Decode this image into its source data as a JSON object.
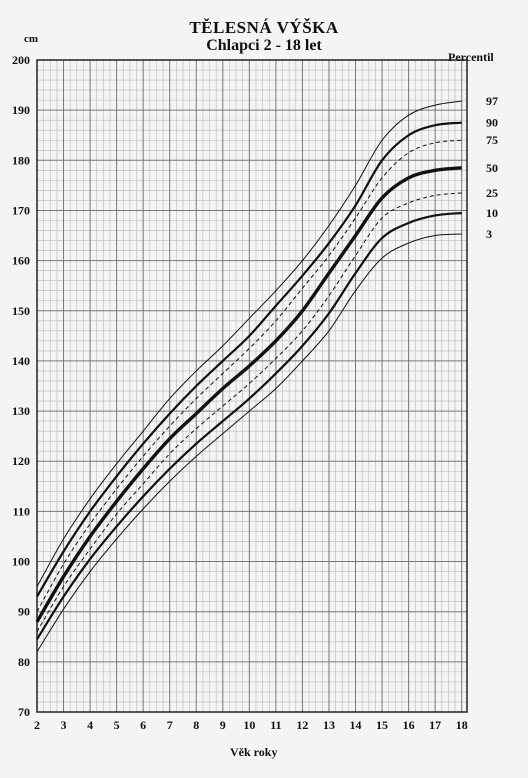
{
  "header": {
    "title": "TĚLESNÁ VÝŠKA",
    "subtitle": "Chlapci 2 - 18 let",
    "y_unit": "cm",
    "legend_title": "Percentil",
    "x_label": "Věk roky"
  },
  "chart_data": {
    "type": "line",
    "title": "TĚLESNÁ VÝŠKA",
    "subtitle": "Chlapci 2 - 18 let",
    "xlabel": "Věk roky",
    "ylabel": "cm",
    "xlim": [
      2,
      18.2
    ],
    "ylim": [
      70,
      200
    ],
    "x_ticks": [
      2,
      3,
      4,
      5,
      6,
      7,
      8,
      9,
      10,
      11,
      12,
      13,
      14,
      15,
      16,
      17,
      18
    ],
    "y_ticks": [
      70,
      80,
      90,
      100,
      110,
      120,
      130,
      140,
      150,
      160,
      170,
      180,
      190,
      200
    ],
    "grid": true,
    "legend_placement": "right",
    "x": [
      2,
      3,
      4,
      5,
      6,
      7,
      8,
      9,
      10,
      11,
      12,
      13,
      14,
      15,
      16,
      17,
      18
    ],
    "series": [
      {
        "name": "97",
        "style": "thin",
        "values": [
          95.0,
          104.5,
          112.5,
          119.5,
          126.0,
          132.5,
          138.0,
          143.0,
          148.5,
          154.0,
          160.0,
          167.0,
          175.0,
          184.0,
          189.0,
          191.0,
          191.8
        ]
      },
      {
        "name": "90",
        "style": "bold",
        "values": [
          93.0,
          102.0,
          110.0,
          117.0,
          123.5,
          129.5,
          135.0,
          140.0,
          145.0,
          151.0,
          157.0,
          163.5,
          171.0,
          180.0,
          185.0,
          187.0,
          187.5
        ]
      },
      {
        "name": "75",
        "style": "dashed",
        "values": [
          90.0,
          99.5,
          107.5,
          114.5,
          121.0,
          127.0,
          132.5,
          137.5,
          142.5,
          148.0,
          154.5,
          161.0,
          168.5,
          176.5,
          181.5,
          183.5,
          184.0
        ]
      },
      {
        "name": "50",
        "style": "heavy",
        "values": [
          88.0,
          97.0,
          105.0,
          112.0,
          118.5,
          124.5,
          129.5,
          134.5,
          139.0,
          144.0,
          150.0,
          157.5,
          165.0,
          172.5,
          176.5,
          178.0,
          178.5
        ]
      },
      {
        "name": "25",
        "style": "dashed",
        "values": [
          86.0,
          95.0,
          102.5,
          109.5,
          115.5,
          121.5,
          126.5,
          131.0,
          135.5,
          140.5,
          146.0,
          153.0,
          161.0,
          168.5,
          171.5,
          173.0,
          173.5
        ]
      },
      {
        "name": "10",
        "style": "bold",
        "values": [
          84.5,
          93.0,
          100.5,
          107.0,
          113.0,
          118.5,
          123.5,
          128.0,
          132.5,
          137.5,
          143.0,
          149.5,
          157.5,
          164.5,
          167.5,
          169.0,
          169.5
        ]
      },
      {
        "name": "3",
        "style": "thin",
        "values": [
          82.0,
          90.5,
          98.0,
          104.5,
          110.5,
          116.0,
          121.0,
          125.5,
          130.0,
          134.5,
          140.0,
          146.0,
          154.0,
          160.5,
          163.5,
          165.0,
          165.3
        ]
      }
    ]
  }
}
